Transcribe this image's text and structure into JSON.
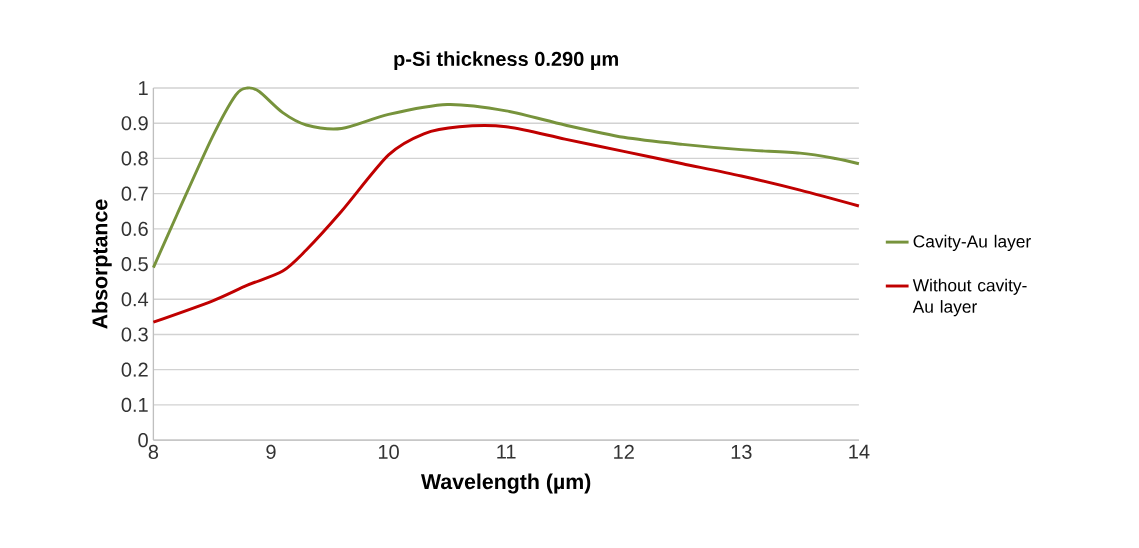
{
  "chart_data": {
    "type": "line",
    "title": "p-Si thickness 0.290 µm",
    "xlabel": "Wavelength (µm)",
    "ylabel": "Absorptance",
    "xlim": [
      8,
      14
    ],
    "xticks": [
      8,
      9,
      10,
      11,
      12,
      13,
      14
    ],
    "ylim": [
      0,
      1
    ],
    "yticks": [
      0,
      0.1,
      0.2,
      0.3,
      0.4,
      0.5,
      0.6,
      0.7,
      0.8,
      0.9,
      1
    ],
    "grid": "y",
    "legend": "right",
    "line_style": "solid",
    "series": [
      {
        "name": "Cavity-Au layer",
        "color": "#77933c",
        "x": [
          8,
          8.2,
          8.5,
          8.7,
          8.8,
          8.9,
          9.1,
          9.3,
          9.6,
          10,
          10.5,
          11,
          11.5,
          12,
          12.5,
          13,
          13.5,
          13.8,
          14
        ],
        "values": [
          0.49,
          0.64,
          0.86,
          0.98,
          1.0,
          0.99,
          0.93,
          0.895,
          0.885,
          0.925,
          0.953,
          0.935,
          0.895,
          0.86,
          0.84,
          0.825,
          0.815,
          0.8,
          0.785
        ]
      },
      {
        "name": "Without cavity-Au layer",
        "color": "#c00000",
        "x": [
          8,
          8.5,
          8.8,
          9.1,
          9.3,
          9.6,
          10,
          10.3,
          10.6,
          11,
          11.5,
          12,
          12.5,
          13,
          13.5,
          14
        ],
        "values": [
          0.335,
          0.395,
          0.44,
          0.48,
          0.54,
          0.65,
          0.81,
          0.87,
          0.89,
          0.89,
          0.855,
          0.82,
          0.785,
          0.75,
          0.71,
          0.665
        ]
      }
    ]
  }
}
